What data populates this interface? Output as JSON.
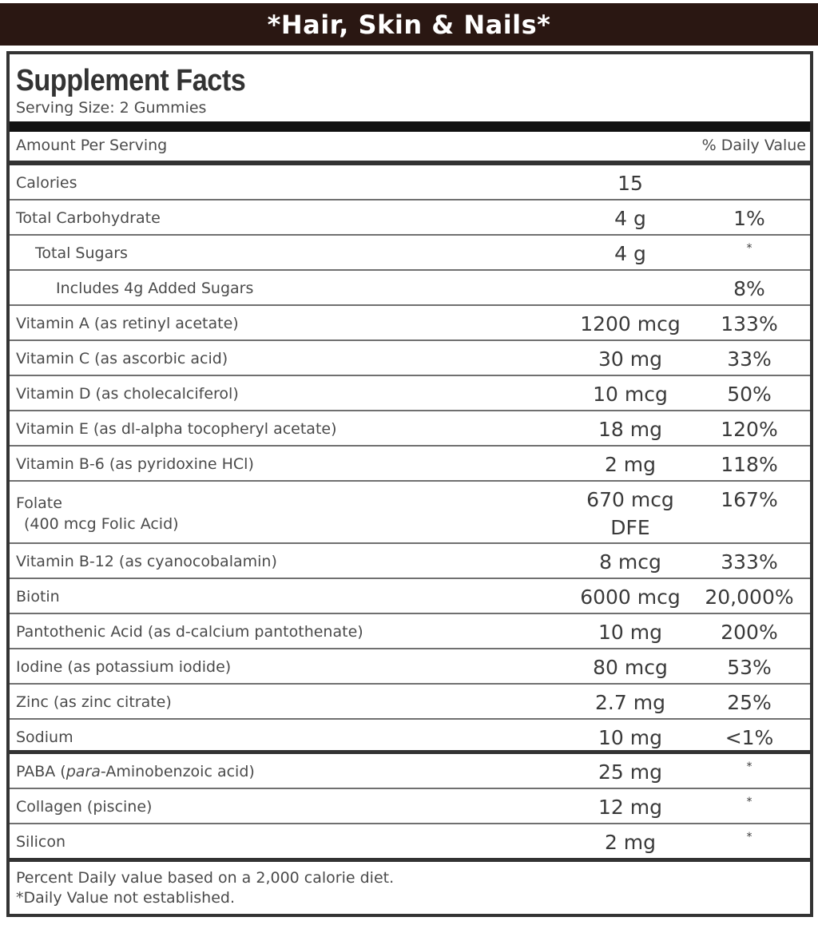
{
  "banner": {
    "title": "*Hair, Skin & Nails*"
  },
  "label": {
    "title": "Supplement Facts",
    "serving_size": "Serving Size: 2 Gummies",
    "amount_header": "Amount Per Serving",
    "dv_header": "% Daily Value"
  },
  "nutrients": [
    {
      "name": "Calories",
      "amount": "15",
      "dv": ""
    },
    {
      "name": "Total Carbohydrate",
      "amount": "4 g",
      "dv": "1%"
    },
    {
      "name": "Total Sugars",
      "amount": "4 g",
      "dv": "*"
    },
    {
      "name": "Includes 4g Added Sugars",
      "amount": "",
      "dv": "8%"
    },
    {
      "name": "Vitamin A (as retinyl acetate)",
      "amount": "1200 mcg",
      "dv": "133%"
    },
    {
      "name": "Vitamin C (as ascorbic acid)",
      "amount": "30 mg",
      "dv": "33%"
    },
    {
      "name": "Vitamin D (as cholecalciferol)",
      "amount": "10 mcg",
      "dv": "50%"
    },
    {
      "name": "Vitamin E (as dl-alpha tocopheryl acetate)",
      "amount": "18 mg",
      "dv": "120%"
    },
    {
      "name": "Vitamin B-6 (as pyridoxine HCl)",
      "amount": "2 mg",
      "dv": "118%"
    },
    {
      "name": "Folate",
      "sub": "(400 mcg Folic Acid)",
      "amount": "670 mcg",
      "amount2": "DFE",
      "dv": "167%"
    },
    {
      "name": "Vitamin B-12 (as cyanocobalamin)",
      "amount": "8 mcg",
      "dv": "333%"
    },
    {
      "name": "Biotin",
      "amount": "6000 mcg",
      "dv": "20,000%"
    },
    {
      "name": "Pantothenic Acid (as d-calcium pantothenate)",
      "amount": "10 mg",
      "dv": "200%"
    },
    {
      "name": "Iodine (as potassium iodide)",
      "amount": "80 mcg",
      "dv": "53%"
    },
    {
      "name": "Zinc (as zinc citrate)",
      "amount": "2.7 mg",
      "dv": "25%"
    },
    {
      "name": "Sodium",
      "amount": "10 mg",
      "dv": "<1%"
    }
  ],
  "others": [
    {
      "name_pre": "PABA (",
      "name_italic": "para",
      "name_post": "-Aminobenzoic acid)",
      "amount": "25 mg",
      "dv": "*"
    },
    {
      "name": "Collagen (piscine)",
      "amount": "12 mg",
      "dv": "*"
    },
    {
      "name": "Silicon",
      "amount": "2 mg",
      "dv": "*"
    }
  ],
  "footnotes": {
    "line1": "Percent Daily value based on a 2,000 calorie diet.",
    "line2": "*Daily Value not established."
  }
}
